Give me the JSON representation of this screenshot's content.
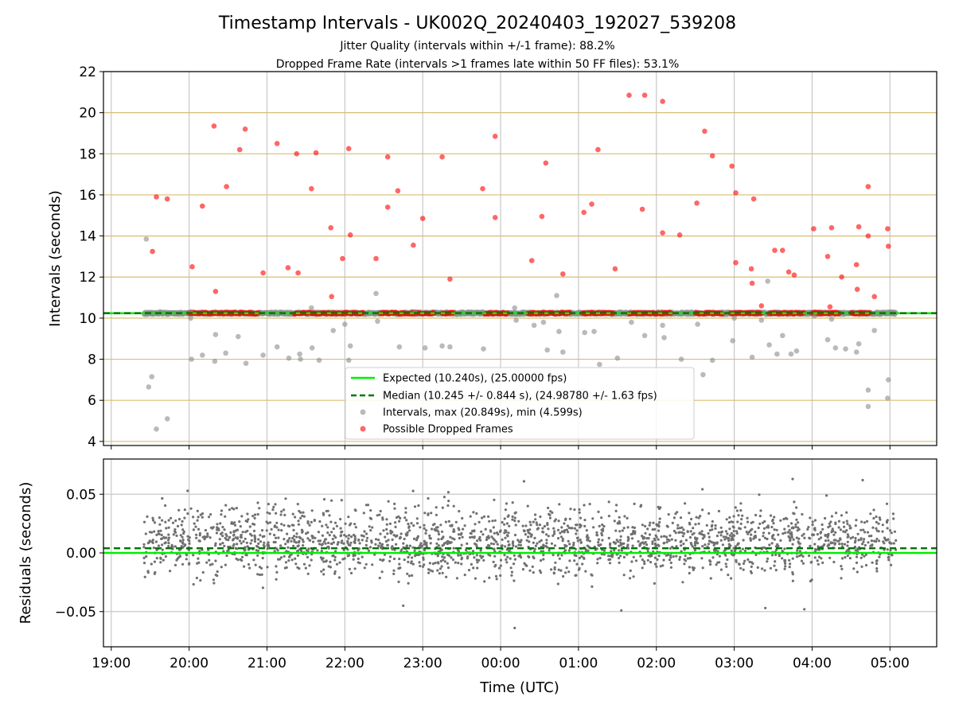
{
  "chart_data": {
    "title": "Timestamp Intervals - UK002Q_20240403_192027_539208",
    "subtitles": [
      "Jitter Quality (intervals within +/-1 frame): 88.2%",
      "Dropped Frame Rate (intervals >1 frames late within 50 FF files): 53.1%"
    ],
    "xlabel": "Time (UTC)",
    "x_tick_labels": [
      "19:00",
      "20:00",
      "21:00",
      "22:00",
      "23:00",
      "00:00",
      "01:00",
      "02:00",
      "03:00",
      "04:00",
      "05:00"
    ],
    "x_range_hours": [
      18.9,
      29.6
    ],
    "panels": [
      {
        "type": "scatter",
        "ylabel": "Intervals (seconds)",
        "ylim": [
          3.8,
          22
        ],
        "y_ticks": [
          4,
          6,
          8,
          10,
          12,
          14,
          16,
          18,
          20,
          22
        ],
        "y_tick_labels": [
          "4",
          "6",
          "8",
          "10",
          "12",
          "14",
          "16",
          "18",
          "20",
          "22"
        ],
        "grid": "horizontal gold lines, vertical gray lines",
        "legend_position": "bottom-center",
        "lines": [
          {
            "name": "Expected (10.240s), (25.00000 fps)",
            "y": 10.24,
            "color": "#00ee00",
            "style": "solid"
          },
          {
            "name": "Median (10.245 +/- 0.844 s), (24.98780 +/- 1.63 fps)",
            "y": 10.245,
            "color": "#007700",
            "style": "dashed"
          }
        ],
        "series": [
          {
            "name": "Intervals, max (20.849s), min (4.599s)",
            "color": "#8c8c8c",
            "points": [
              [
                19.45,
                13.85
              ],
              [
                19.48,
                6.65
              ],
              [
                19.52,
                7.15
              ],
              [
                19.58,
                4.6
              ],
              [
                19.72,
                5.1
              ],
              [
                20.02,
                10.3
              ],
              [
                20.02,
                10.0
              ],
              [
                20.03,
                8.0
              ],
              [
                20.17,
                8.2
              ],
              [
                20.33,
                7.9
              ],
              [
                20.34,
                9.2
              ],
              [
                20.47,
                8.3
              ],
              [
                20.63,
                9.1
              ],
              [
                20.73,
                7.8
              ],
              [
                20.95,
                8.2
              ],
              [
                21.13,
                8.6
              ],
              [
                21.28,
                8.05
              ],
              [
                21.42,
                8.25
              ],
              [
                21.43,
                8.0
              ],
              [
                21.57,
                10.5
              ],
              [
                21.58,
                8.55
              ],
              [
                21.67,
                7.95
              ],
              [
                21.85,
                9.4
              ],
              [
                22.0,
                9.7
              ],
              [
                22.05,
                7.95
              ],
              [
                22.07,
                8.65
              ],
              [
                22.4,
                11.2
              ],
              [
                22.42,
                9.85
              ],
              [
                22.7,
                8.6
              ],
              [
                22.9,
                10.3
              ],
              [
                23.03,
                8.55
              ],
              [
                23.25,
                8.65
              ],
              [
                23.35,
                8.6
              ],
              [
                23.78,
                8.5
              ],
              [
                24.18,
                10.5
              ],
              [
                24.2,
                9.9
              ],
              [
                24.43,
                9.65
              ],
              [
                24.55,
                9.8
              ],
              [
                24.6,
                8.45
              ],
              [
                24.72,
                11.1
              ],
              [
                24.75,
                9.35
              ],
              [
                24.8,
                8.35
              ],
              [
                25.08,
                9.3
              ],
              [
                25.2,
                9.35
              ],
              [
                25.27,
                7.75
              ],
              [
                25.5,
                8.05
              ],
              [
                25.68,
                9.8
              ],
              [
                25.85,
                9.15
              ],
              [
                26.08,
                9.65
              ],
              [
                26.1,
                9.05
              ],
              [
                26.32,
                8.0
              ],
              [
                26.53,
                9.7
              ],
              [
                26.6,
                7.25
              ],
              [
                26.72,
                7.95
              ],
              [
                26.98,
                8.9
              ],
              [
                27.0,
                10.0
              ],
              [
                27.23,
                8.1
              ],
              [
                27.35,
                9.9
              ],
              [
                27.43,
                11.8
              ],
              [
                27.45,
                8.7
              ],
              [
                27.55,
                8.25
              ],
              [
                27.62,
                9.15
              ],
              [
                27.73,
                8.25
              ],
              [
                27.8,
                8.4
              ],
              [
                28.03,
                10.1
              ],
              [
                28.2,
                8.95
              ],
              [
                28.25,
                9.95
              ],
              [
                28.3,
                8.55
              ],
              [
                28.43,
                8.5
              ],
              [
                28.57,
                8.35
              ],
              [
                28.6,
                8.75
              ],
              [
                28.72,
                6.5
              ],
              [
                28.72,
                5.7
              ],
              [
                28.8,
                9.4
              ],
              [
                28.97,
                6.1
              ],
              [
                28.98,
                7.0
              ]
            ]
          },
          {
            "name": "Possible Dropped Frames",
            "color": "#ff0000",
            "points": [
              [
                19.53,
                13.25
              ],
              [
                19.58,
                15.9
              ],
              [
                19.72,
                15.8
              ],
              [
                20.04,
                12.5
              ],
              [
                20.17,
                15.45
              ],
              [
                20.32,
                19.35
              ],
              [
                20.34,
                11.3
              ],
              [
                20.48,
                16.4
              ],
              [
                20.65,
                18.2
              ],
              [
                20.72,
                19.2
              ],
              [
                20.95,
                12.2
              ],
              [
                21.13,
                18.5
              ],
              [
                21.27,
                12.45
              ],
              [
                21.38,
                18.0
              ],
              [
                21.4,
                12.2
              ],
              [
                21.57,
                16.3
              ],
              [
                21.63,
                18.05
              ],
              [
                21.82,
                14.4
              ],
              [
                21.83,
                11.05
              ],
              [
                21.97,
                12.9
              ],
              [
                22.05,
                18.25
              ],
              [
                22.07,
                14.05
              ],
              [
                22.4,
                12.9
              ],
              [
                22.55,
                17.85
              ],
              [
                22.55,
                15.4
              ],
              [
                22.68,
                16.2
              ],
              [
                22.88,
                13.55
              ],
              [
                23.0,
                14.85
              ],
              [
                23.25,
                17.85
              ],
              [
                23.35,
                11.9
              ],
              [
                23.77,
                16.3
              ],
              [
                23.93,
                18.85
              ],
              [
                23.93,
                14.9
              ],
              [
                24.4,
                12.8
              ],
              [
                24.53,
                14.95
              ],
              [
                24.58,
                17.55
              ],
              [
                24.8,
                12.15
              ],
              [
                25.07,
                15.15
              ],
              [
                25.17,
                15.55
              ],
              [
                25.25,
                18.2
              ],
              [
                25.47,
                12.4
              ],
              [
                25.65,
                20.85
              ],
              [
                25.82,
                15.3
              ],
              [
                25.85,
                20.85
              ],
              [
                26.08,
                20.55
              ],
              [
                26.08,
                14.15
              ],
              [
                26.3,
                14.05
              ],
              [
                26.52,
                15.6
              ],
              [
                26.62,
                19.1
              ],
              [
                26.72,
                17.9
              ],
              [
                26.97,
                17.4
              ],
              [
                27.02,
                16.1
              ],
              [
                27.02,
                12.7
              ],
              [
                27.22,
                12.4
              ],
              [
                27.23,
                11.7
              ],
              [
                27.25,
                15.8
              ],
              [
                27.35,
                10.6
              ],
              [
                27.52,
                13.3
              ],
              [
                27.62,
                13.3
              ],
              [
                27.7,
                12.25
              ],
              [
                27.77,
                12.1
              ],
              [
                28.02,
                14.35
              ],
              [
                28.2,
                13.0
              ],
              [
                28.23,
                10.55
              ],
              [
                28.25,
                14.4
              ],
              [
                28.38,
                12.0
              ],
              [
                28.57,
                12.6
              ],
              [
                28.58,
                11.4
              ],
              [
                28.6,
                14.45
              ],
              [
                28.72,
                16.4
              ],
              [
                28.72,
                14.0
              ],
              [
                28.8,
                11.05
              ],
              [
                28.97,
                14.35
              ],
              [
                28.98,
                13.5
              ]
            ]
          }
        ]
      },
      {
        "type": "scatter",
        "ylabel": "Residuals (seconds)",
        "ylim": [
          -0.08,
          0.08
        ],
        "y_ticks": [
          -0.05,
          0.0,
          0.05
        ],
        "y_tick_labels": [
          "−0.05",
          "0.00",
          "0.05"
        ],
        "grid": "gray lines",
        "lines": [
          {
            "name": "Expected",
            "y": 0.0,
            "color": "#00ee00",
            "style": "solid"
          },
          {
            "name": "Median",
            "y": 0.004,
            "color": "#007700",
            "style": "dashed"
          }
        ],
        "residual_spread": {
          "center": 0.008,
          "typical_range": [
            -0.03,
            0.05
          ],
          "extremes": [
            -0.064,
            0.063
          ]
        }
      }
    ]
  }
}
